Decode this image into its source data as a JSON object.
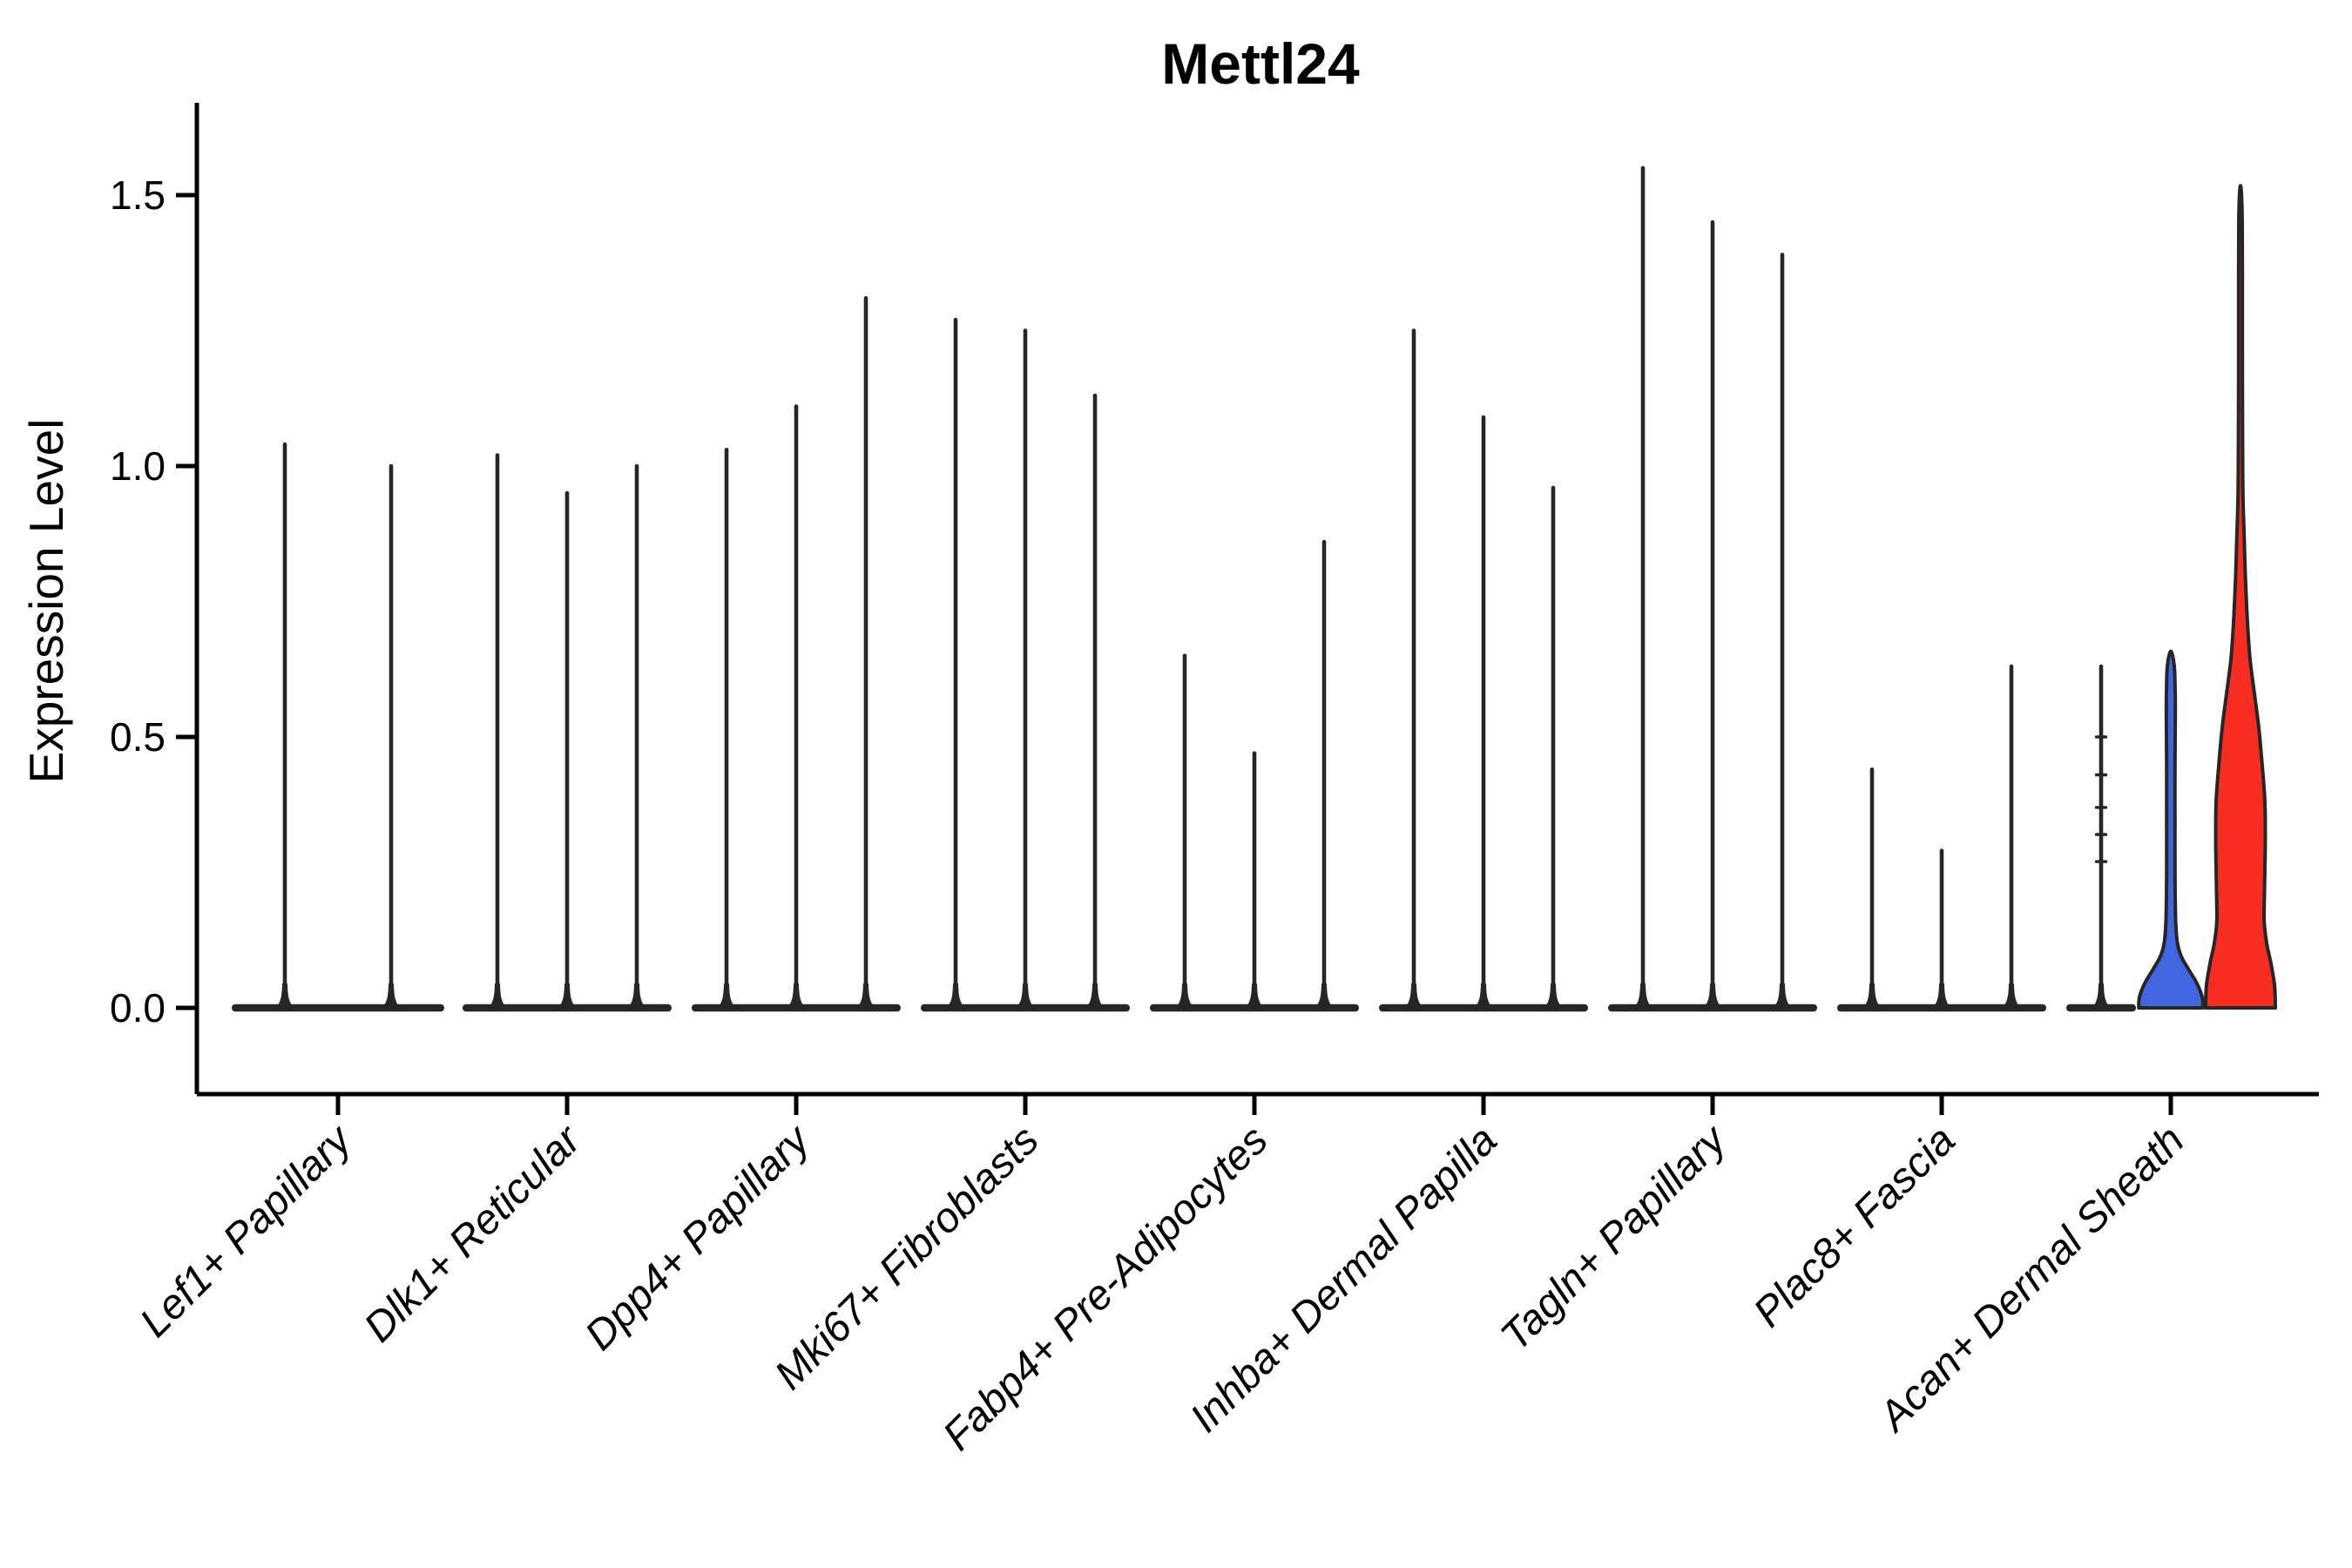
{
  "chart_data": {
    "type": "violin",
    "title": "Mettl24",
    "ylabel": "Expression Level",
    "xlabel": "",
    "yticks": [
      0.0,
      0.5,
      1.0,
      1.5
    ],
    "ytick_labels": [
      "0.0",
      "0.5",
      "1.0",
      "1.5"
    ],
    "ylim": [
      -0.08,
      1.67
    ],
    "grid": false,
    "legend_position": "none",
    "background": "#FFFFFF",
    "colors": {
      "outline": "#262626",
      "axis": "#000000",
      "violin_blue": "#4066E0",
      "violin_red": "#F82D21"
    },
    "categories": [
      "Lef1+ Papillary",
      "Dlk1+ Reticular",
      "Dpp4+ Papillary",
      "Mki67+ Fibroblasts",
      "Fabp4+ Pre-Adipocytes",
      "Inhba+ Dermal Papilla",
      "Tagln+ Papillary",
      "Plac8+ Fascia",
      "Acan+ Dermal Sheath"
    ],
    "groups": [
      {
        "category": "Lef1+ Papillary",
        "violins": [
          {
            "max": 1.04,
            "style": "spike"
          },
          {
            "max": 1.0,
            "style": "spike"
          }
        ]
      },
      {
        "category": "Dlk1+ Reticular",
        "violins": [
          {
            "max": 1.02,
            "style": "spike"
          },
          {
            "max": 0.95,
            "style": "spike"
          },
          {
            "max": 1.0,
            "style": "spike"
          }
        ]
      },
      {
        "category": "Dpp4+ Papillary",
        "violins": [
          {
            "max": 1.03,
            "style": "spike"
          },
          {
            "max": 1.11,
            "style": "spike"
          },
          {
            "max": 1.31,
            "style": "spike"
          }
        ]
      },
      {
        "category": "Mki67+ Fibroblasts",
        "violins": [
          {
            "max": 1.27,
            "style": "spike"
          },
          {
            "max": 1.25,
            "style": "spike"
          },
          {
            "max": 1.13,
            "style": "spike"
          }
        ]
      },
      {
        "category": "Fabp4+ Pre-Adipocytes",
        "violins": [
          {
            "max": 0.65,
            "style": "spike"
          },
          {
            "max": 0.47,
            "style": "spike"
          },
          {
            "max": 0.86,
            "style": "spike"
          }
        ]
      },
      {
        "category": "Inhba+ Dermal Papilla",
        "violins": [
          {
            "max": 1.25,
            "style": "spike"
          },
          {
            "max": 1.09,
            "style": "spike"
          },
          {
            "max": 0.96,
            "style": "spike"
          }
        ]
      },
      {
        "category": "Tagln+ Papillary",
        "violins": [
          {
            "max": 1.55,
            "style": "spike"
          },
          {
            "max": 1.45,
            "style": "spike"
          },
          {
            "max": 1.39,
            "style": "spike"
          }
        ]
      },
      {
        "category": "Plac8+ Fascia",
        "violins": [
          {
            "max": 0.44,
            "style": "spike"
          },
          {
            "max": 0.29,
            "style": "spike"
          },
          {
            "max": 0.63,
            "style": "spike"
          }
        ]
      },
      {
        "category": "Acan+ Dermal Sheath",
        "violins": [
          {
            "max": 0.63,
            "style": "spike",
            "nubs": [
              0.5,
              0.43,
              0.37,
              0.32,
              0.27
            ]
          },
          {
            "max": 0.66,
            "style": "shaped",
            "fill": "#4066E0",
            "profile": [
              [
                0,
                0.92
              ],
              [
                0.02,
                0.9
              ],
              [
                0.045,
                0.75
              ],
              [
                0.07,
                0.52
              ],
              [
                0.095,
                0.3
              ],
              [
                0.12,
                0.19
              ],
              [
                0.16,
                0.14
              ],
              [
                0.25,
                0.12
              ],
              [
                0.35,
                0.12
              ],
              [
                0.45,
                0.12
              ],
              [
                0.55,
                0.13
              ],
              [
                0.6,
                0.12
              ],
              [
                0.63,
                0.1
              ],
              [
                0.655,
                0.03
              ]
            ]
          },
          {
            "max": 1.51,
            "style": "shaped",
            "fill": "#F82D21",
            "profile": [
              [
                0,
                1.0
              ],
              [
                0.04,
                0.98
              ],
              [
                0.08,
                0.88
              ],
              [
                0.12,
                0.75
              ],
              [
                0.16,
                0.68
              ],
              [
                0.22,
                0.69
              ],
              [
                0.3,
                0.71
              ],
              [
                0.38,
                0.7
              ],
              [
                0.45,
                0.62
              ],
              [
                0.52,
                0.52
              ],
              [
                0.58,
                0.4
              ],
              [
                0.64,
                0.28
              ],
              [
                0.7,
                0.21
              ],
              [
                0.78,
                0.15
              ],
              [
                0.86,
                0.11
              ],
              [
                0.95,
                0.07
              ],
              [
                1.05,
                0.06
              ],
              [
                1.2,
                0.055
              ],
              [
                1.35,
                0.055
              ],
              [
                1.45,
                0.05
              ],
              [
                1.51,
                0.02
              ]
            ]
          }
        ]
      }
    ]
  }
}
